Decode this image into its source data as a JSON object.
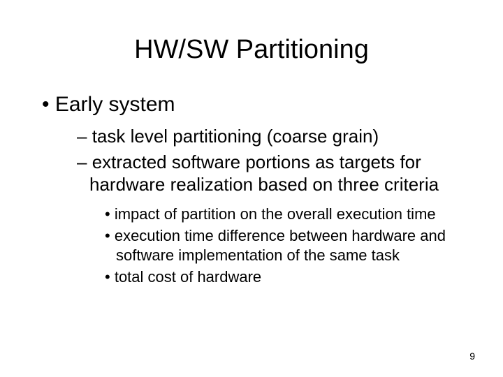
{
  "title": "HW/SW Partitioning",
  "bullets": {
    "l1_0": "Early system",
    "l2_0": "task level partitioning (coarse grain)",
    "l2_1": "extracted software portions as targets for hardware realization based on three criteria",
    "l3_0": "impact of partition on the overall execution time",
    "l3_1": "execution time difference between hardware and software implementation of the same task",
    "l3_2": "total cost of hardware"
  },
  "page_number": "9",
  "colors": {
    "background": "#ffffff",
    "text": "#000000"
  },
  "fonts": {
    "family": "Arial",
    "title_size_pt": 38,
    "l1_size_pt": 30,
    "l2_size_pt": 26,
    "l3_size_pt": 22,
    "pagenum_size_pt": 14
  }
}
